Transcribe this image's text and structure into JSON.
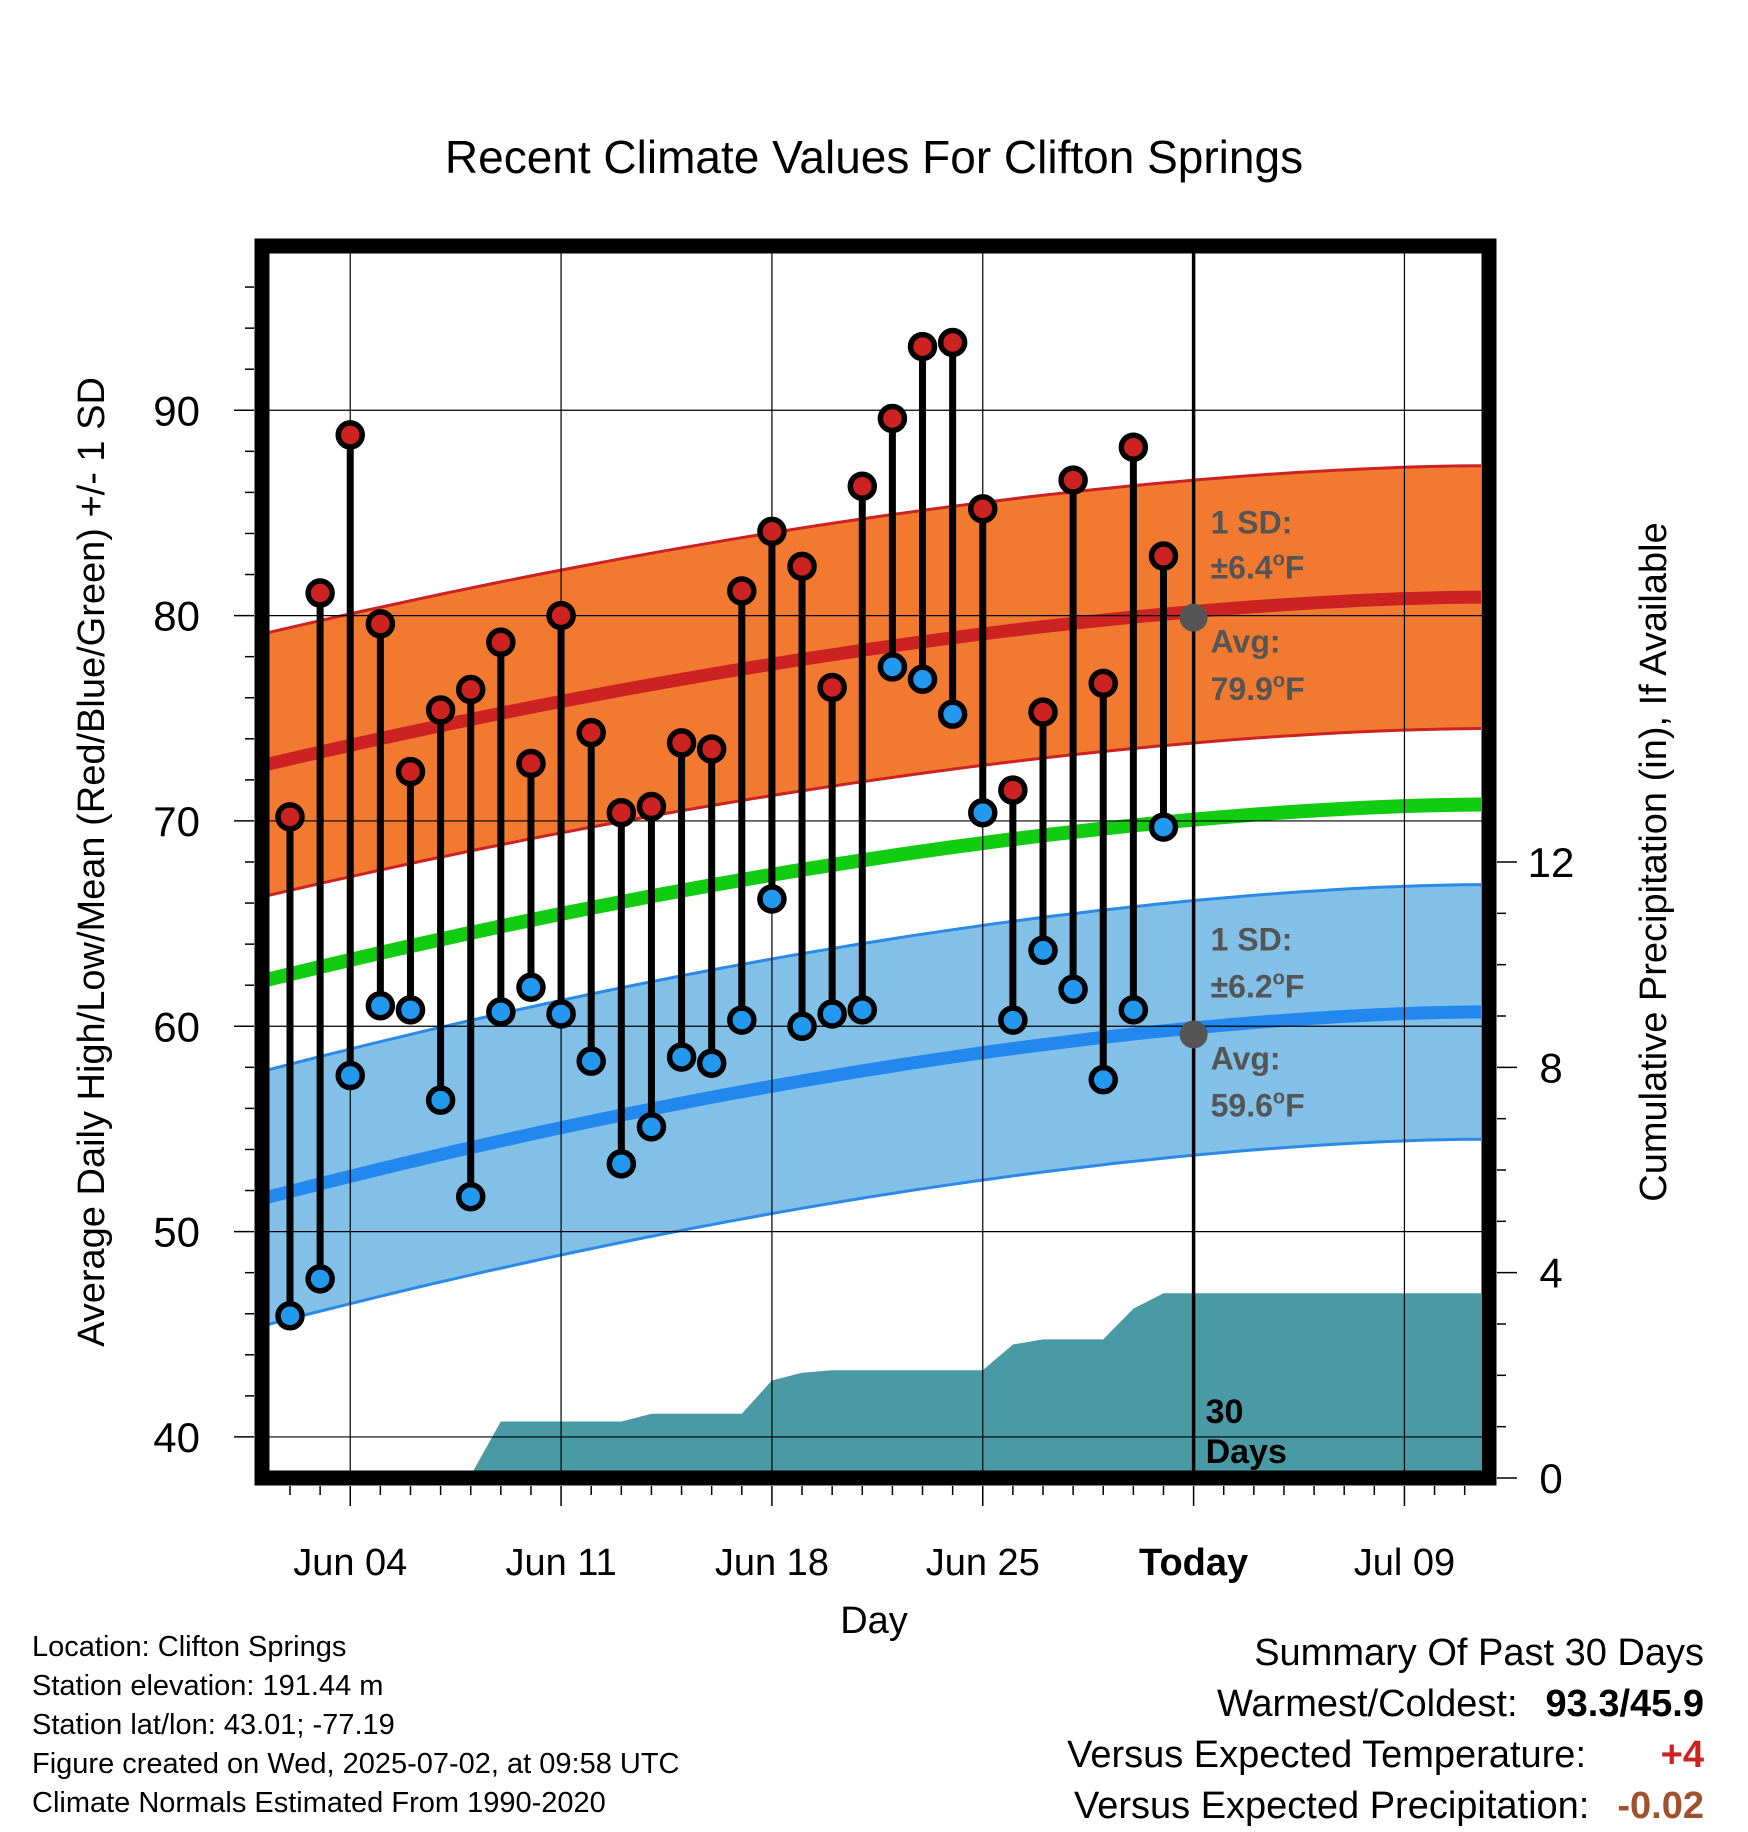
{
  "title": "Recent Climate Values For Clifton Springs",
  "chart_data": {
    "type": "line",
    "title": "Recent Climate Values For Clifton Springs",
    "xlabel": "Day",
    "ylabel": "Average Daily High/Low/Mean (Red/Blue/Green) +/- 1 SD",
    "y2label": "Cumulative Precipitation (in), If Available",
    "ylim": [
      38,
      98
    ],
    "y2lim": [
      0,
      24
    ],
    "x_tick_labels": [
      "Jun 04",
      "Jun 11",
      "Jun 18",
      "Jun 25",
      "Today",
      "Jul 09"
    ],
    "y_ticks": [
      40,
      50,
      60,
      70,
      80,
      90
    ],
    "y2_ticks": [
      0,
      4,
      8,
      12
    ],
    "grid": true,
    "today_label": "Today",
    "window_label": [
      "30",
      "Days"
    ],
    "normals": {
      "high_mean": {
        "start": 72.7,
        "end": 80.9
      },
      "high_sd": 6.4,
      "low_mean": {
        "start": 51.6,
        "end": 60.7
      },
      "low_sd": 6.2,
      "mean": {
        "start": 62.2,
        "end": 70.8
      }
    },
    "annotations": {
      "high_sd_label": [
        "1 SD:",
        "±6.4°F"
      ],
      "high_avg_label": [
        "Avg:",
        "79.9°F"
      ],
      "low_sd_label": [
        "1 SD:",
        "±6.2°F"
      ],
      "low_avg_label": [
        "Avg:",
        "59.6°F"
      ],
      "today_high_avg": 79.9,
      "today_low_avg": 59.6
    },
    "days": [
      "Jun 02",
      "Jun 03",
      "Jun 04",
      "Jun 05",
      "Jun 06",
      "Jun 07",
      "Jun 08",
      "Jun 09",
      "Jun 10",
      "Jun 11",
      "Jun 12",
      "Jun 13",
      "Jun 14",
      "Jun 15",
      "Jun 16",
      "Jun 17",
      "Jun 18",
      "Jun 19",
      "Jun 20",
      "Jun 21",
      "Jun 22",
      "Jun 23",
      "Jun 24",
      "Jun 25",
      "Jun 26",
      "Jun 27",
      "Jun 28",
      "Jun 29",
      "Jun 30",
      "Jul 01"
    ],
    "series": [
      {
        "name": "High",
        "color": "#cc2222",
        "values": [
          70.2,
          81.1,
          88.8,
          79.6,
          72.4,
          75.4,
          76.4,
          78.7,
          72.8,
          80.0,
          74.3,
          70.4,
          70.7,
          73.8,
          73.5,
          81.2,
          84.1,
          82.4,
          76.5,
          86.3,
          89.6,
          93.1,
          93.3,
          85.2,
          71.5,
          75.3,
          86.6,
          76.7,
          88.2,
          82.9
        ]
      },
      {
        "name": "Low",
        "color": "#2299ee",
        "values": [
          45.9,
          47.7,
          57.6,
          61.0,
          60.8,
          56.4,
          51.7,
          60.7,
          61.9,
          60.6,
          58.3,
          53.3,
          55.1,
          58.5,
          58.2,
          60.3,
          66.2,
          60.0,
          60.6,
          60.8,
          77.5,
          76.9,
          75.2,
          70.4,
          60.3,
          63.7,
          61.8,
          57.4,
          60.8,
          69.7
        ]
      },
      {
        "name": "Precipitation",
        "color": "#4a9aa5",
        "values": [
          0,
          0,
          0,
          0,
          0,
          0.01,
          0.05,
          1.1,
          1.1,
          1.1,
          1.1,
          1.1,
          1.25,
          1.25,
          1.25,
          1.25,
          1.9,
          2.05,
          2.1,
          2.1,
          2.1,
          2.1,
          2.1,
          2.1,
          2.6,
          2.7,
          2.7,
          2.7,
          3.3,
          3.6
        ],
        "projected": 3.6
      }
    ]
  },
  "info": {
    "location": "Location: Clifton Springs",
    "elevation": "Station elevation: 191.44 m",
    "latlon": "Station lat/lon: 43.01; -77.19",
    "created": "Figure created on Wed, 2025-07-02, at 09:58 UTC",
    "normals": "Climate Normals Estimated From 1990-2020"
  },
  "summary": {
    "heading": "Summary Of Past 30 Days",
    "warm_cold_label": "Warmest/Coldest:",
    "warm_cold_value": "93.3/45.9",
    "temp_label": "Versus Expected Temperature:",
    "temp_value": "+4",
    "temp_color": "#cc2222",
    "precip_label": "Versus Expected Precipitation:",
    "precip_value": "-0.02",
    "precip_color": "#a0522d"
  }
}
